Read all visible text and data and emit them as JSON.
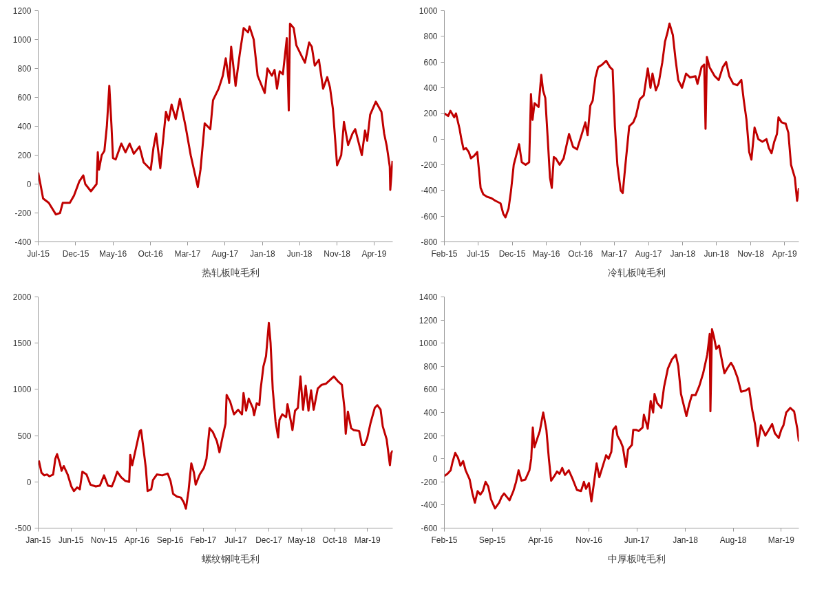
{
  "chart_data": [
    {
      "type": "line",
      "xlim": [
        "2015-07-01",
        "2019-06-16"
      ],
      "ylim": [
        -400,
        1200
      ],
      "yticks": [
        -400,
        -200,
        0,
        200,
        400,
        600,
        800,
        1000,
        1200
      ],
      "xticks": [
        {
          "value": "2015-07-01",
          "label": "Jul-15"
        },
        {
          "value": "2015-12-01",
          "label": "Dec-15"
        },
        {
          "value": "2016-05-01",
          "label": "May-16"
        },
        {
          "value": "2016-10-01",
          "label": "Oct-16"
        },
        {
          "value": "2017-03-01",
          "label": "Mar-17"
        },
        {
          "value": "2017-08-01",
          "label": "Aug-17"
        },
        {
          "value": "2018-01-01",
          "label": "Jan-18"
        },
        {
          "value": "2018-06-01",
          "label": "Jun-18"
        },
        {
          "value": "2018-11-01",
          "label": "Nov-18"
        },
        {
          "value": "2019-04-01",
          "label": "Apr-19"
        }
      ],
      "legend": "bottom",
      "grid": false,
      "marker": "none",
      "line_style": "solid",
      "series": [
        {
          "name": "热轧板吨毛利",
          "color": "#c00000",
          "x": [
            "2015-07-01",
            "2015-07-10",
            "2015-07-21",
            "2015-08-13",
            "2015-09-11",
            "2015-09-28",
            "2015-10-09",
            "2015-11-07",
            "2015-11-24",
            "2015-12-16",
            "2016-01-01",
            "2016-01-09",
            "2016-02-01",
            "2016-02-24",
            "2016-02-29",
            "2016-03-05",
            "2016-03-16",
            "2016-03-27",
            "2016-04-06",
            "2016-04-16",
            "2016-04-25",
            "2016-05-01",
            "2016-05-12",
            "2016-06-04",
            "2016-06-21",
            "2016-07-08",
            "2016-07-25",
            "2016-08-17",
            "2016-09-03",
            "2016-10-02",
            "2016-10-13",
            "2016-10-24",
            "2016-11-10",
            "2016-12-03",
            "2016-12-14",
            "2016-12-26",
            "2017-01-12",
            "2017-01-29",
            "2017-02-21",
            "2017-03-14",
            "2017-04-12",
            "2017-04-23",
            "2017-05-10",
            "2017-06-02",
            "2017-06-13",
            "2017-07-06",
            "2017-07-23",
            "2017-08-04",
            "2017-08-18",
            "2017-08-26",
            "2017-09-13",
            "2017-09-30",
            "2017-10-16",
            "2017-11-03",
            "2017-11-09",
            "2017-11-26",
            "2017-12-12",
            "2018-01-10",
            "2018-01-21",
            "2018-02-08",
            "2018-02-19",
            "2018-03-01",
            "2018-03-12",
            "2018-03-25",
            "2018-04-10",
            "2018-04-18",
            "2018-04-23",
            "2018-05-08",
            "2018-05-19",
            "2018-06-11",
            "2018-06-23",
            "2018-07-10",
            "2018-07-21",
            "2018-08-02",
            "2018-08-19",
            "2018-09-05",
            "2018-09-22",
            "2018-10-03",
            "2018-10-15",
            "2018-11-01",
            "2018-11-18",
            "2018-11-29",
            "2018-12-16",
            "2019-01-03",
            "2019-01-14",
            "2019-02-10",
            "2019-02-23",
            "2019-03-04",
            "2019-03-16",
            "2019-04-08",
            "2019-05-01",
            "2019-05-12",
            "2019-05-23",
            "2019-06-04",
            "2019-06-06",
            "2019-06-15"
          ],
          "values": [
            80,
            0,
            -100,
            -130,
            -210,
            -200,
            -130,
            -130,
            -80,
            20,
            60,
            0,
            -50,
            0,
            220,
            100,
            200,
            230,
            400,
            680,
            400,
            180,
            170,
            280,
            220,
            280,
            210,
            260,
            150,
            100,
            250,
            350,
            110,
            500,
            440,
            550,
            450,
            590,
            400,
            200,
            -20,
            100,
            420,
            380,
            580,
            660,
            750,
            870,
            700,
            950,
            680,
            900,
            1080,
            1050,
            1090,
            1000,
            750,
            630,
            800,
            750,
            790,
            660,
            780,
            760,
            1010,
            510,
            1110,
            1080,
            960,
            880,
            840,
            980,
            950,
            820,
            860,
            660,
            740,
            670,
            520,
            130,
            200,
            430,
            270,
            350,
            380,
            200,
            370,
            300,
            480,
            570,
            500,
            350,
            260,
            120,
            -40,
            160
          ]
        }
      ]
    },
    {
      "type": "line",
      "xlim": [
        "2015-02-01",
        "2019-06-04"
      ],
      "ylim": [
        -800,
        1000
      ],
      "yticks": [
        -800,
        -600,
        -400,
        -200,
        0,
        200,
        400,
        600,
        800,
        1000
      ],
      "xticks": [
        {
          "value": "2015-02-01",
          "label": "Feb-15"
        },
        {
          "value": "2015-07-01",
          "label": "Jul-15"
        },
        {
          "value": "2015-12-01",
          "label": "Dec-15"
        },
        {
          "value": "2016-05-01",
          "label": "May-16"
        },
        {
          "value": "2016-10-01",
          "label": "Oct-16"
        },
        {
          "value": "2017-03-01",
          "label": "Mar-17"
        },
        {
          "value": "2017-08-01",
          "label": "Aug-17"
        },
        {
          "value": "2018-01-01",
          "label": "Jan-18"
        },
        {
          "value": "2018-06-01",
          "label": "Jun-18"
        },
        {
          "value": "2018-11-01",
          "label": "Nov-18"
        },
        {
          "value": "2019-04-01",
          "label": "Apr-19"
        }
      ],
      "legend": "bottom",
      "grid": false,
      "marker": "none",
      "line_style": "solid",
      "series": [
        {
          "name": "冷轧板吨毛利",
          "color": "#c00000",
          "x": [
            "2015-02-01",
            "2015-02-18",
            "2015-02-28",
            "2015-03-17",
            "2015-03-25",
            "2015-04-10",
            "2015-04-18",
            "2015-04-28",
            "2015-05-09",
            "2015-05-21",
            "2015-05-31",
            "2015-06-14",
            "2015-06-28",
            "2015-07-13",
            "2015-07-25",
            "2015-08-12",
            "2015-08-30",
            "2015-09-17",
            "2015-10-10",
            "2015-10-22",
            "2015-11-01",
            "2015-11-15",
            "2015-11-26",
            "2015-12-08",
            "2015-12-17",
            "2016-01-01",
            "2016-01-13",
            "2016-01-30",
            "2016-02-15",
            "2016-02-23",
            "2016-03-01",
            "2016-03-10",
            "2016-03-28",
            "2016-04-09",
            "2016-04-17",
            "2016-04-27",
            "2016-05-08",
            "2016-05-18",
            "2016-05-26",
            "2016-06-04",
            "2016-06-13",
            "2016-06-30",
            "2016-07-18",
            "2016-08-11",
            "2016-08-29",
            "2016-09-16",
            "2016-10-09",
            "2016-10-23",
            "2016-11-02",
            "2016-11-14",
            "2016-11-25",
            "2016-12-07",
            "2016-12-19",
            "2017-01-06",
            "2017-01-24",
            "2017-02-10",
            "2017-02-22",
            "2017-03-04",
            "2017-03-15",
            "2017-03-30",
            "2017-04-08",
            "2017-04-20",
            "2017-05-07",
            "2017-05-25",
            "2017-06-06",
            "2017-06-23",
            "2017-07-11",
            "2017-07-29",
            "2017-08-10",
            "2017-08-19",
            "2017-09-03",
            "2017-09-15",
            "2017-10-02",
            "2017-10-14",
            "2017-10-25",
            "2017-11-03",
            "2017-11-18",
            "2017-11-30",
            "2017-12-12",
            "2017-12-29",
            "2018-01-16",
            "2018-02-03",
            "2018-02-27",
            "2018-03-08",
            "2018-03-26",
            "2018-04-07",
            "2018-04-13",
            "2018-04-19",
            "2018-05-01",
            "2018-05-24",
            "2018-06-11",
            "2018-06-29",
            "2018-07-14",
            "2018-07-28",
            "2018-08-15",
            "2018-09-02",
            "2018-09-20",
            "2018-10-01",
            "2018-10-13",
            "2018-10-25",
            "2018-11-04",
            "2018-11-18",
            "2018-12-05",
            "2018-12-23",
            "2019-01-10",
            "2019-01-21",
            "2019-02-02",
            "2019-02-14",
            "2019-02-26",
            "2019-03-05",
            "2019-03-19",
            "2019-04-06",
            "2019-04-18",
            "2019-04-30",
            "2019-05-17",
            "2019-05-27",
            "2019-06-04"
          ],
          "values": [
            200,
            180,
            220,
            170,
            200,
            80,
            0,
            -80,
            -70,
            -100,
            -150,
            -130,
            -100,
            -380,
            -430,
            -450,
            -460,
            -480,
            -500,
            -580,
            -610,
            -540,
            -400,
            -200,
            -140,
            -40,
            -180,
            -200,
            -180,
            350,
            150,
            280,
            250,
            500,
            380,
            320,
            0,
            -300,
            -380,
            -140,
            -150,
            -200,
            -150,
            40,
            -60,
            -80,
            50,
            130,
            30,
            260,
            300,
            480,
            560,
            580,
            610,
            560,
            540,
            100,
            -200,
            -400,
            -420,
            -200,
            100,
            130,
            180,
            310,
            340,
            550,
            400,
            510,
            380,
            430,
            600,
            760,
            830,
            900,
            810,
            620,
            460,
            400,
            510,
            480,
            490,
            430,
            560,
            580,
            80,
            640,
            560,
            490,
            460,
            560,
            600,
            490,
            430,
            420,
            460,
            300,
            150,
            -100,
            -160,
            90,
            0,
            -20,
            0,
            -70,
            -110,
            -20,
            40,
            170,
            130,
            120,
            50,
            -200,
            -300,
            -480,
            -380
          ]
        }
      ]
    },
    {
      "type": "line",
      "xlim": [
        "2015-01-01",
        "2019-06-26"
      ],
      "ylim": [
        -500,
        2000
      ],
      "yticks": [
        -500,
        0,
        500,
        1000,
        1500,
        2000
      ],
      "xticks": [
        {
          "value": "2015-01-01",
          "label": "Jan-15"
        },
        {
          "value": "2015-06-01",
          "label": "Jun-15"
        },
        {
          "value": "2015-11-01",
          "label": "Nov-15"
        },
        {
          "value": "2016-04-01",
          "label": "Apr-16"
        },
        {
          "value": "2016-09-01",
          "label": "Sep-16"
        },
        {
          "value": "2017-02-01",
          "label": "Feb-17"
        },
        {
          "value": "2017-07-01",
          "label": "Jul-17"
        },
        {
          "value": "2017-12-01",
          "label": "Dec-17"
        },
        {
          "value": "2018-05-01",
          "label": "May-18"
        },
        {
          "value": "2018-10-01",
          "label": "Oct-18"
        },
        {
          "value": "2019-03-01",
          "label": "Mar-19"
        }
      ],
      "legend": "bottom",
      "grid": false,
      "marker": "none",
      "line_style": "solid",
      "series": [
        {
          "name": "螺纹钢吨毛利",
          "color": "#c00000",
          "x": [
            "2015-01-04",
            "2015-01-16",
            "2015-01-29",
            "2015-02-10",
            "2015-02-22",
            "2015-03-11",
            "2015-03-21",
            "2015-03-29",
            "2015-04-11",
            "2015-04-19",
            "2015-04-29",
            "2015-05-17",
            "2015-06-03",
            "2015-06-15",
            "2015-06-30",
            "2015-07-12",
            "2015-07-24",
            "2015-08-12",
            "2015-08-30",
            "2015-09-24",
            "2015-10-13",
            "2015-11-01",
            "2015-11-19",
            "2015-12-07",
            "2015-12-19",
            "2016-01-01",
            "2016-01-19",
            "2016-02-07",
            "2016-02-25",
            "2016-03-01",
            "2016-03-10",
            "2016-03-26",
            "2016-04-14",
            "2016-04-20",
            "2016-04-30",
            "2016-05-12",
            "2016-05-20",
            "2016-06-06",
            "2016-06-14",
            "2016-07-02",
            "2016-07-27",
            "2016-08-21",
            "2016-09-03",
            "2016-09-15",
            "2016-10-03",
            "2016-10-21",
            "2016-11-03",
            "2016-11-13",
            "2016-11-25",
            "2016-12-08",
            "2016-12-20",
            "2016-12-28",
            "2017-01-16",
            "2017-02-04",
            "2017-02-16",
            "2017-03-02",
            "2017-03-17",
            "2017-04-05",
            "2017-04-17",
            "2017-04-29",
            "2017-05-15",
            "2017-05-20",
            "2017-06-05",
            "2017-06-23",
            "2017-07-12",
            "2017-07-30",
            "2017-08-06",
            "2017-08-18",
            "2017-08-30",
            "2017-09-18",
            "2017-09-24",
            "2017-10-06",
            "2017-10-18",
            "2017-10-24",
            "2017-11-06",
            "2017-11-18",
            "2017-12-01",
            "2017-12-09",
            "2017-12-19",
            "2018-01-01",
            "2018-01-13",
            "2018-01-19",
            "2018-02-01",
            "2018-02-19",
            "2018-02-25",
            "2018-03-14",
            "2018-03-20",
            "2018-04-01",
            "2018-04-14",
            "2018-04-26",
            "2018-05-08",
            "2018-05-20",
            "2018-06-02",
            "2018-06-14",
            "2018-06-26",
            "2018-07-15",
            "2018-08-02",
            "2018-08-21",
            "2018-09-09",
            "2018-09-27",
            "2018-10-15",
            "2018-11-03",
            "2018-11-15",
            "2018-11-21",
            "2018-12-01",
            "2018-12-16",
            "2018-12-28",
            "2019-01-22",
            "2019-02-04",
            "2019-02-16",
            "2019-02-28",
            "2019-03-16",
            "2019-04-04",
            "2019-04-16",
            "2019-05-01",
            "2019-05-11",
            "2019-05-29",
            "2019-06-13",
            "2019-06-19",
            "2019-06-26"
          ],
          "values": [
            230,
            100,
            70,
            80,
            60,
            80,
            250,
            300,
            200,
            120,
            170,
            80,
            -50,
            -100,
            -60,
            -80,
            110,
            80,
            -30,
            -50,
            -40,
            70,
            -40,
            -50,
            20,
            110,
            50,
            10,
            0,
            290,
            180,
            350,
            550,
            560,
            380,
            150,
            -100,
            -80,
            20,
            80,
            70,
            90,
            10,
            -130,
            -160,
            -170,
            -220,
            -290,
            -100,
            200,
            100,
            -30,
            80,
            150,
            250,
            580,
            540,
            440,
            320,
            460,
            630,
            940,
            870,
            730,
            780,
            730,
            960,
            770,
            900,
            800,
            720,
            850,
            830,
            1000,
            1250,
            1360,
            1720,
            1500,
            1000,
            650,
            480,
            670,
            730,
            700,
            840,
            640,
            560,
            770,
            800,
            1140,
            780,
            1040,
            770,
            990,
            780,
            1010,
            1050,
            1060,
            1100,
            1140,
            1090,
            1050,
            800,
            520,
            760,
            580,
            560,
            550,
            400,
            400,
            470,
            640,
            800,
            830,
            780,
            600,
            460,
            180,
            310,
            340
          ]
        }
      ]
    },
    {
      "type": "line",
      "xlim": [
        "2015-02-01",
        "2019-05-18"
      ],
      "ylim": [
        -600,
        1400
      ],
      "yticks": [
        -600,
        -400,
        -200,
        0,
        200,
        400,
        600,
        800,
        1000,
        1200,
        1400
      ],
      "xticks": [
        {
          "value": "2015-02-01",
          "label": "Feb-15"
        },
        {
          "value": "2015-09-01",
          "label": "Sep-15"
        },
        {
          "value": "2016-04-01",
          "label": "Apr-16"
        },
        {
          "value": "2016-11-01",
          "label": "Nov-16"
        },
        {
          "value": "2017-06-01",
          "label": "Jun-17"
        },
        {
          "value": "2018-01-01",
          "label": "Jan-18"
        },
        {
          "value": "2018-08-01",
          "label": "Aug-18"
        },
        {
          "value": "2019-03-01",
          "label": "Mar-19"
        }
      ],
      "legend": "bottom",
      "grid": false,
      "marker": "none",
      "line_style": "solid",
      "series": [
        {
          "name": "中厚板吨毛利",
          "color": "#c00000",
          "x": [
            "2015-02-01",
            "2015-02-15",
            "2015-03-01",
            "2015-03-09",
            "2015-03-21",
            "2015-04-02",
            "2015-04-13",
            "2015-04-25",
            "2015-05-06",
            "2015-05-24",
            "2015-06-05",
            "2015-06-16",
            "2015-06-28",
            "2015-07-10",
            "2015-07-21",
            "2015-08-02",
            "2015-08-14",
            "2015-08-26",
            "2015-09-13",
            "2015-10-01",
            "2015-10-12",
            "2015-10-23",
            "2015-11-16",
            "2015-12-03",
            "2015-12-15",
            "2015-12-26",
            "2016-01-08",
            "2016-01-25",
            "2016-02-12",
            "2016-02-20",
            "2016-02-27",
            "2016-03-05",
            "2016-03-17",
            "2016-03-29",
            "2016-04-13",
            "2016-04-27",
            "2016-05-08",
            "2016-05-18",
            "2016-06-01",
            "2016-06-13",
            "2016-06-24",
            "2016-07-06",
            "2016-07-18",
            "2016-08-04",
            "2016-08-22",
            "2016-09-09",
            "2016-09-27",
            "2016-10-10",
            "2016-10-19",
            "2016-11-01",
            "2016-11-12",
            "2016-11-24",
            "2016-12-05",
            "2016-12-17",
            "2016-12-28",
            "2017-01-16",
            "2017-01-27",
            "2017-02-08",
            "2017-02-16",
            "2017-02-28",
            "2017-03-07",
            "2017-03-21",
            "2017-03-31",
            "2017-04-14",
            "2017-04-23",
            "2017-05-10",
            "2017-05-16",
            "2017-05-28",
            "2017-06-09",
            "2017-06-26",
            "2017-07-02",
            "2017-07-14",
            "2017-07-19",
            "2017-08-01",
            "2017-08-12",
            "2017-08-18",
            "2017-08-30",
            "2017-09-17",
            "2017-09-29",
            "2017-10-16",
            "2017-11-03",
            "2017-11-20",
            "2017-12-01",
            "2017-12-13",
            "2018-01-06",
            "2018-01-18",
            "2018-01-30",
            "2018-02-15",
            "2018-03-04",
            "2018-03-21",
            "2018-04-08",
            "2018-04-19",
            "2018-04-22",
            "2018-04-29",
            "2018-05-07",
            "2018-05-18",
            "2018-05-30",
            "2018-06-11",
            "2018-06-23",
            "2018-07-08",
            "2018-07-22",
            "2018-08-03",
            "2018-08-20",
            "2018-09-05",
            "2018-09-25",
            "2018-10-10",
            "2018-10-24",
            "2018-11-05",
            "2018-11-17",
            "2018-12-01",
            "2018-12-21",
            "2019-01-08",
            "2019-01-20",
            "2019-02-01",
            "2019-02-18",
            "2019-03-01",
            "2019-03-11",
            "2019-03-23",
            "2019-04-10",
            "2019-04-27",
            "2019-05-11",
            "2019-05-18"
          ],
          "values": [
            -150,
            -130,
            -100,
            -30,
            50,
            10,
            -60,
            -20,
            -100,
            -180,
            -300,
            -380,
            -280,
            -310,
            -280,
            -200,
            -240,
            -350,
            -430,
            -380,
            -330,
            -300,
            -360,
            -280,
            -200,
            -100,
            -190,
            -180,
            -100,
            0,
            270,
            100,
            170,
            240,
            400,
            250,
            0,
            -190,
            -150,
            -110,
            -130,
            -80,
            -140,
            -100,
            -180,
            -270,
            -280,
            -200,
            -260,
            -210,
            -370,
            -200,
            -40,
            -160,
            -90,
            30,
            0,
            60,
            250,
            280,
            200,
            150,
            100,
            -70,
            80,
            120,
            250,
            250,
            240,
            270,
            380,
            300,
            260,
            500,
            400,
            560,
            480,
            440,
            620,
            780,
            860,
            900,
            800,
            560,
            370,
            470,
            550,
            550,
            630,
            740,
            900,
            1080,
            410,
            1120,
            1060,
            950,
            980,
            860,
            740,
            790,
            830,
            790,
            700,
            580,
            590,
            610,
            420,
            300,
            110,
            290,
            200,
            260,
            300,
            220,
            180,
            250,
            290,
            400,
            440,
            410,
            260,
            150
          ]
        }
      ]
    }
  ]
}
